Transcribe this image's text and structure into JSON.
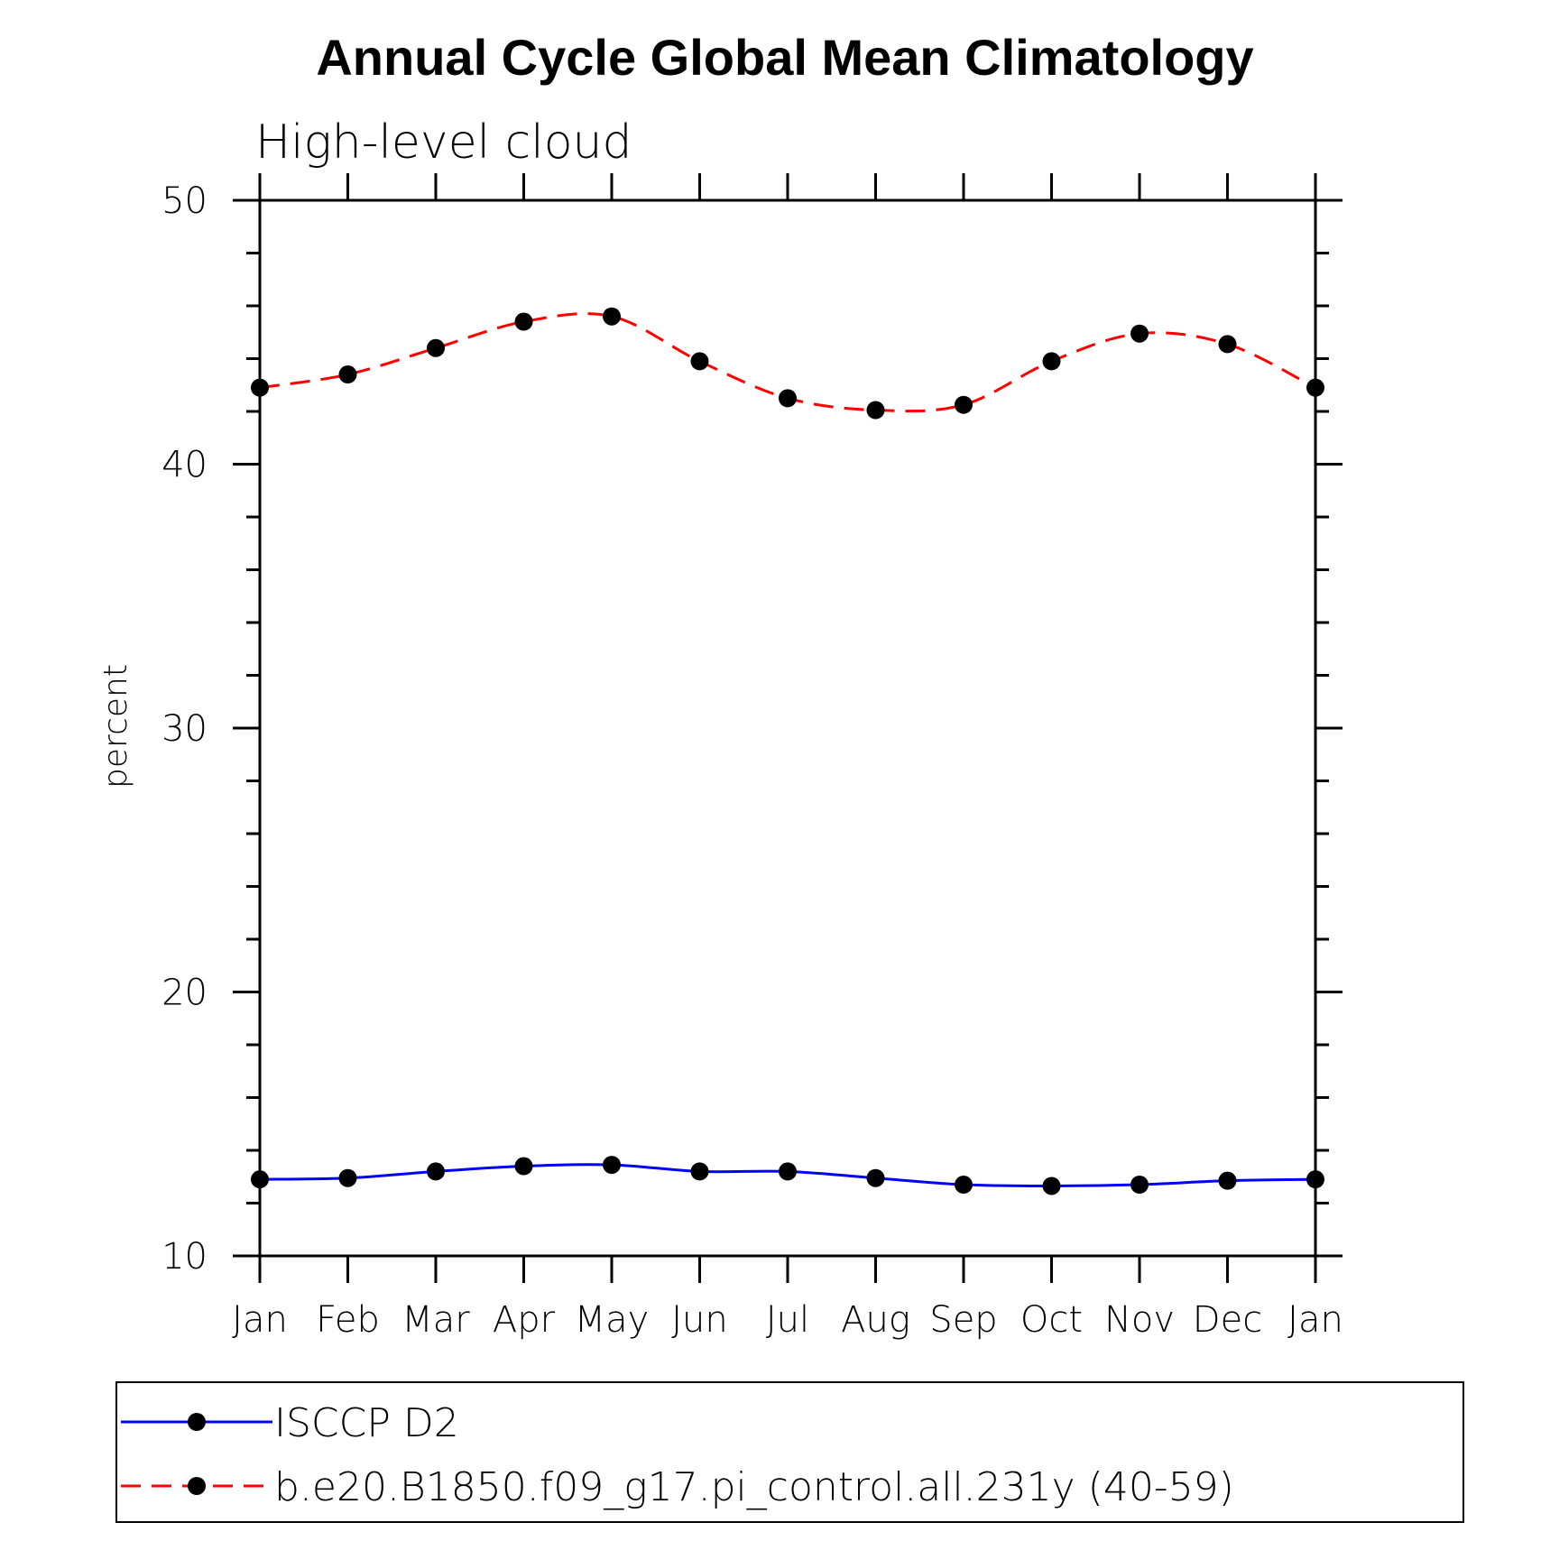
{
  "chart_data": {
    "type": "line",
    "title": "Annual Cycle Global Mean Climatology",
    "subtitle": "High-level cloud",
    "xlabel": "",
    "ylabel": "percent",
    "categories": [
      "Jan",
      "Feb",
      "Mar",
      "Apr",
      "May",
      "Jun",
      "Jul",
      "Aug",
      "Sep",
      "Oct",
      "Nov",
      "Dec",
      "Jan"
    ],
    "ylim": [
      10,
      50
    ],
    "yticks": [
      "10",
      "20",
      "30",
      "40",
      "50"
    ],
    "grid": false,
    "legend_position": "bottom",
    "series": [
      {
        "name": "ISCCP D2",
        "color": "#0000ff",
        "line_style": "solid",
        "marker": "filled-circle",
        "values": [
          12.9,
          12.95,
          13.2,
          13.4,
          13.45,
          13.2,
          13.2,
          12.95,
          12.7,
          12.65,
          12.7,
          12.85,
          12.9
        ]
      },
      {
        "name": "b.e20.B1850.f09_g17.pi_control.all.231y (40-59)",
        "color": "#ff0000",
        "line_style": "dashed",
        "marker": "filled-circle",
        "values": [
          42.9,
          43.4,
          44.4,
          45.4,
          45.6,
          43.9,
          42.5,
          42.05,
          42.25,
          43.9,
          44.95,
          44.55,
          42.9
        ]
      }
    ]
  }
}
